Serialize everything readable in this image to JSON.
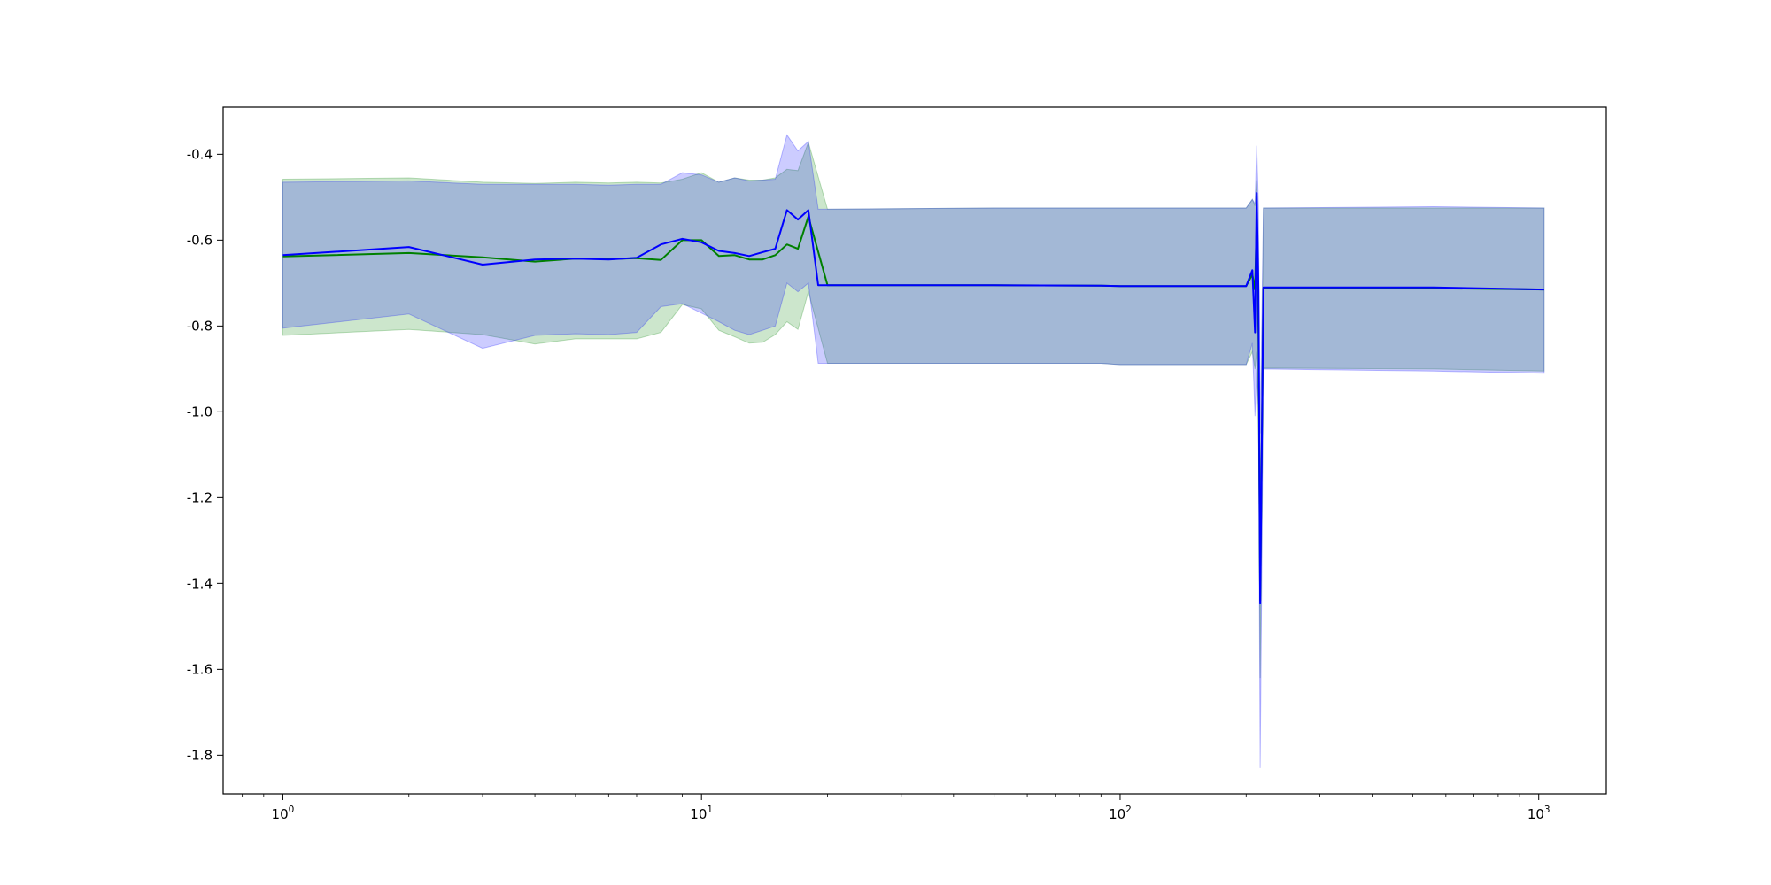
{
  "chart_data": {
    "type": "line",
    "title": "",
    "xlabel": "",
    "ylabel": "",
    "xscale": "log",
    "xlim": [
      0.72,
      1450
    ],
    "ylim": [
      -1.89,
      -0.29
    ],
    "grid": false,
    "legend": "none",
    "x_ticks": [
      {
        "value": 1,
        "base": "10",
        "exp": "0"
      },
      {
        "value": 10,
        "base": "10",
        "exp": "1"
      },
      {
        "value": 100,
        "base": "10",
        "exp": "2"
      },
      {
        "value": 1000,
        "base": "10",
        "exp": "3"
      }
    ],
    "y_ticks": [
      {
        "value": -0.4,
        "label": "-0.4"
      },
      {
        "value": -0.6,
        "label": "-0.6"
      },
      {
        "value": -0.8,
        "label": "-0.8"
      },
      {
        "value": -1.0,
        "label": "-1.0"
      },
      {
        "value": -1.2,
        "label": "-1.2"
      },
      {
        "value": -1.4,
        "label": "-1.4"
      },
      {
        "value": -1.6,
        "label": "-1.6"
      },
      {
        "value": -1.8,
        "label": "-1.8"
      }
    ],
    "series": [
      {
        "color": "#008000",
        "band_color": "#008000",
        "x": [
          1,
          2,
          3,
          4,
          5,
          6,
          7,
          8,
          9,
          10,
          11,
          12,
          13,
          14,
          15,
          16,
          17,
          18,
          20,
          50,
          90,
          100,
          170,
          200,
          207,
          210,
          212,
          214,
          216,
          220,
          560,
          1030
        ],
        "y": [
          -0.638,
          -0.63,
          -0.64,
          -0.65,
          -0.643,
          -0.644,
          -0.642,
          -0.646,
          -0.6,
          -0.6,
          -0.637,
          -0.635,
          -0.645,
          -0.645,
          -0.635,
          -0.61,
          -0.62,
          -0.545,
          -0.705,
          -0.705,
          -0.706,
          -0.707,
          -0.707,
          -0.707,
          -0.68,
          -0.715,
          -0.56,
          -0.82,
          -1.44,
          -0.712,
          -0.712,
          -0.715
        ],
        "upper": [
          -0.458,
          -0.455,
          -0.465,
          -0.468,
          -0.465,
          -0.467,
          -0.465,
          -0.467,
          -0.458,
          -0.443,
          -0.465,
          -0.455,
          -0.46,
          -0.46,
          -0.455,
          -0.435,
          -0.438,
          -0.372,
          -0.528,
          -0.525,
          -0.525,
          -0.525,
          -0.525,
          -0.525,
          -0.505,
          -0.52,
          -0.46,
          -0.64,
          -1.27,
          -0.525,
          -0.525,
          -0.525
        ],
        "lower": [
          -0.822,
          -0.808,
          -0.82,
          -0.842,
          -0.83,
          -0.83,
          -0.83,
          -0.815,
          -0.75,
          -0.76,
          -0.81,
          -0.825,
          -0.84,
          -0.838,
          -0.82,
          -0.79,
          -0.808,
          -0.72,
          -0.887,
          -0.887,
          -0.887,
          -0.89,
          -0.89,
          -0.89,
          -0.86,
          -0.9,
          -0.86,
          -1.0,
          -1.62,
          -0.898,
          -0.9,
          -0.905
        ]
      },
      {
        "color": "#0000ff",
        "band_color": "#0000ff",
        "x": [
          1,
          2,
          3,
          4,
          5,
          6,
          7,
          8,
          9,
          10,
          11,
          12,
          13,
          14,
          15,
          16,
          17,
          18,
          19,
          50,
          90,
          100,
          170,
          200,
          207,
          210,
          212,
          214,
          216,
          220,
          560,
          1030
        ],
        "y": [
          -0.635,
          -0.616,
          -0.657,
          -0.645,
          -0.643,
          -0.645,
          -0.641,
          -0.61,
          -0.597,
          -0.605,
          -0.625,
          -0.63,
          -0.637,
          -0.628,
          -0.62,
          -0.53,
          -0.552,
          -0.53,
          -0.705,
          -0.705,
          -0.706,
          -0.707,
          -0.707,
          -0.707,
          -0.67,
          -0.815,
          -0.49,
          -0.72,
          -1.445,
          -0.71,
          -0.71,
          -0.715
        ],
        "upper": [
          -0.465,
          -0.462,
          -0.47,
          -0.47,
          -0.47,
          -0.472,
          -0.47,
          -0.47,
          -0.443,
          -0.448,
          -0.465,
          -0.455,
          -0.462,
          -0.46,
          -0.458,
          -0.355,
          -0.392,
          -0.37,
          -0.528,
          -0.525,
          -0.525,
          -0.525,
          -0.525,
          -0.525,
          -0.505,
          -0.515,
          -0.38,
          -0.52,
          -1.05,
          -0.525,
          -0.522,
          -0.525
        ],
        "lower": [
          -0.805,
          -0.772,
          -0.852,
          -0.822,
          -0.818,
          -0.82,
          -0.815,
          -0.755,
          -0.748,
          -0.77,
          -0.79,
          -0.81,
          -0.82,
          -0.81,
          -0.8,
          -0.7,
          -0.72,
          -0.7,
          -0.887,
          -0.887,
          -0.887,
          -0.89,
          -0.89,
          -0.89,
          -0.84,
          -1.01,
          -0.9,
          -1.0,
          -1.83,
          -0.9,
          -0.905,
          -0.91
        ]
      }
    ]
  }
}
